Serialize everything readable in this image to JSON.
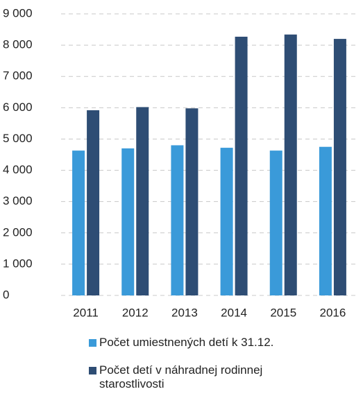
{
  "chart_data": {
    "type": "bar",
    "categories": [
      "2011",
      "2012",
      "2013",
      "2014",
      "2015",
      "2016"
    ],
    "series": [
      {
        "name": "Počet umiestnených detí k 31.12.",
        "color": "#3a9ad9",
        "values": [
          4630,
          4700,
          4800,
          4720,
          4630,
          4750
        ]
      },
      {
        "name": "Počet detí v náhradnej rodinnej starostlivosti",
        "color": "#2e4d74",
        "values": [
          5920,
          6020,
          5980,
          8270,
          8340,
          8200
        ]
      }
    ],
    "ylim": [
      0,
      9000
    ],
    "yticks": [
      0,
      {
        "value": 1000,
        "label": "1 000"
      },
      {
        "value": 2000,
        "label": "2 000"
      },
      {
        "value": 3000,
        "label": "3 000"
      },
      {
        "value": 4000,
        "label": "4 000"
      },
      {
        "value": 5000,
        "label": "5 000"
      },
      {
        "value": 6000,
        "label": "6 000"
      },
      {
        "value": 7000,
        "label": "7 000"
      },
      {
        "value": 8000,
        "label": "8 000"
      },
      {
        "value": 9000,
        "label": "9 000"
      }
    ],
    "grid": true
  }
}
